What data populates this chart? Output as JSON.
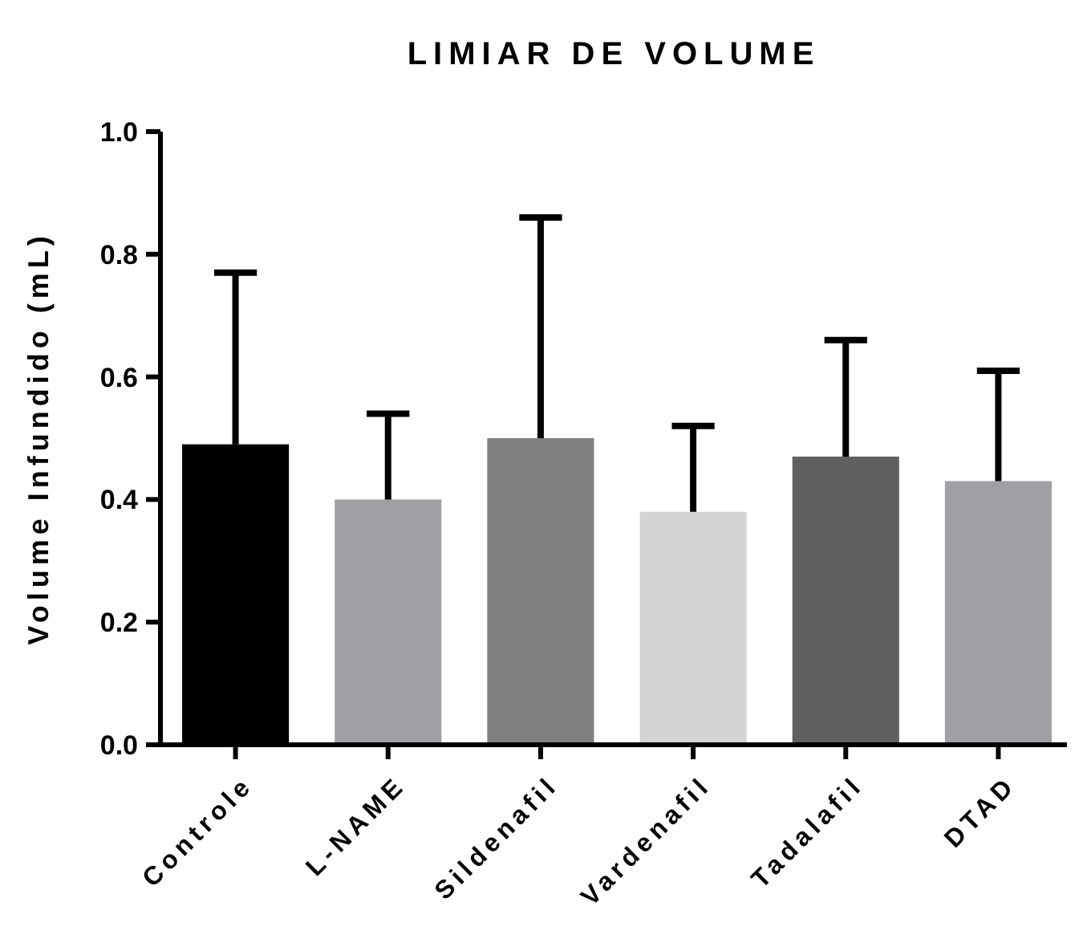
{
  "chart_data": {
    "type": "bar",
    "title": "LIMIAR DE VOLUME",
    "ylabel": "Volume Infundido (mL)",
    "categories": [
      "Controle",
      "L-NAME",
      "Sildenafil",
      "Vardenafil",
      "Tadalafil",
      "DTAD"
    ],
    "values": [
      0.49,
      0.4,
      0.5,
      0.38,
      0.47,
      0.43
    ],
    "colors": [
      "#000000",
      "#a0a0a4",
      "#808080",
      "#d4d4d4",
      "#606060",
      "#a0a0a4"
    ],
    "errors": [
      [
        0.49,
        0.77
      ],
      [
        0.4,
        0.54
      ],
      [
        0.5,
        0.86
      ],
      [
        0.38,
        0.52
      ],
      [
        0.47,
        0.66
      ],
      [
        0.43,
        0.61
      ]
    ],
    "ylim": [
      0,
      1
    ],
    "yticks": [
      {
        "value": 0,
        "label": "0.0"
      },
      {
        "value": 0.2,
        "label": "0.2"
      },
      {
        "value": 0.4,
        "label": "0.4"
      },
      {
        "value": 0.6,
        "label": "0.6"
      },
      {
        "value": 0.8,
        "label": "0.8"
      },
      {
        "value": 1,
        "label": "1.0"
      }
    ],
    "grid": false
  }
}
